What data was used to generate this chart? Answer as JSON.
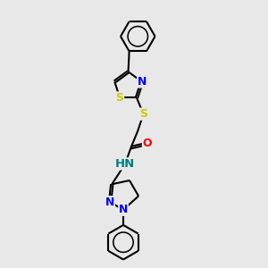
{
  "background_color": "#e8e8e8",
  "bond_color": "#000000",
  "bond_width": 1.5,
  "atom_colors": {
    "N": "#0000ff",
    "O": "#ff0000",
    "S": "#cccc00",
    "C": "#000000",
    "H": "#008080"
  },
  "font_size_atoms": 9,
  "title": ""
}
